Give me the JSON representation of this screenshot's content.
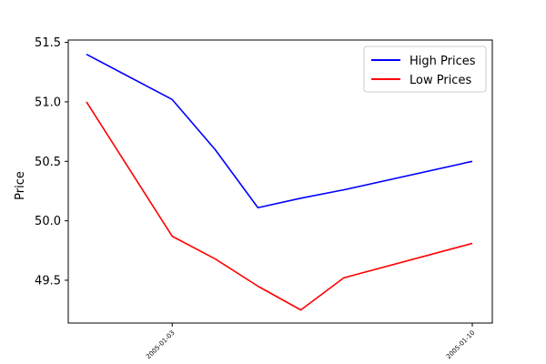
{
  "chart_data": {
    "type": "line",
    "title": "",
    "xlabel": "",
    "ylabel": "Price",
    "x": [
      "2005-01-01",
      "2005-01-03",
      "2005-01-04",
      "2005-01-05",
      "2005-01-06",
      "2005-01-07",
      "2005-01-10"
    ],
    "xticks": [
      "2005-01-03",
      "2005-01-10"
    ],
    "yticks": [
      49.5,
      50.0,
      50.5,
      51.0,
      51.5
    ],
    "ylim": [
      49.14,
      51.52
    ],
    "xlim": [
      "2004-12-31",
      "2005-01-10"
    ],
    "grid": false,
    "legend_position": "top-right",
    "series": [
      {
        "name": "High Prices",
        "color": "#0000ff",
        "values": [
          51.4,
          51.02,
          50.6,
          50.11,
          50.19,
          50.26,
          50.5
        ]
      },
      {
        "name": "Low Prices",
        "color": "#ff0000",
        "values": [
          51.0,
          49.87,
          49.68,
          49.45,
          49.25,
          49.52,
          49.81
        ]
      }
    ]
  }
}
